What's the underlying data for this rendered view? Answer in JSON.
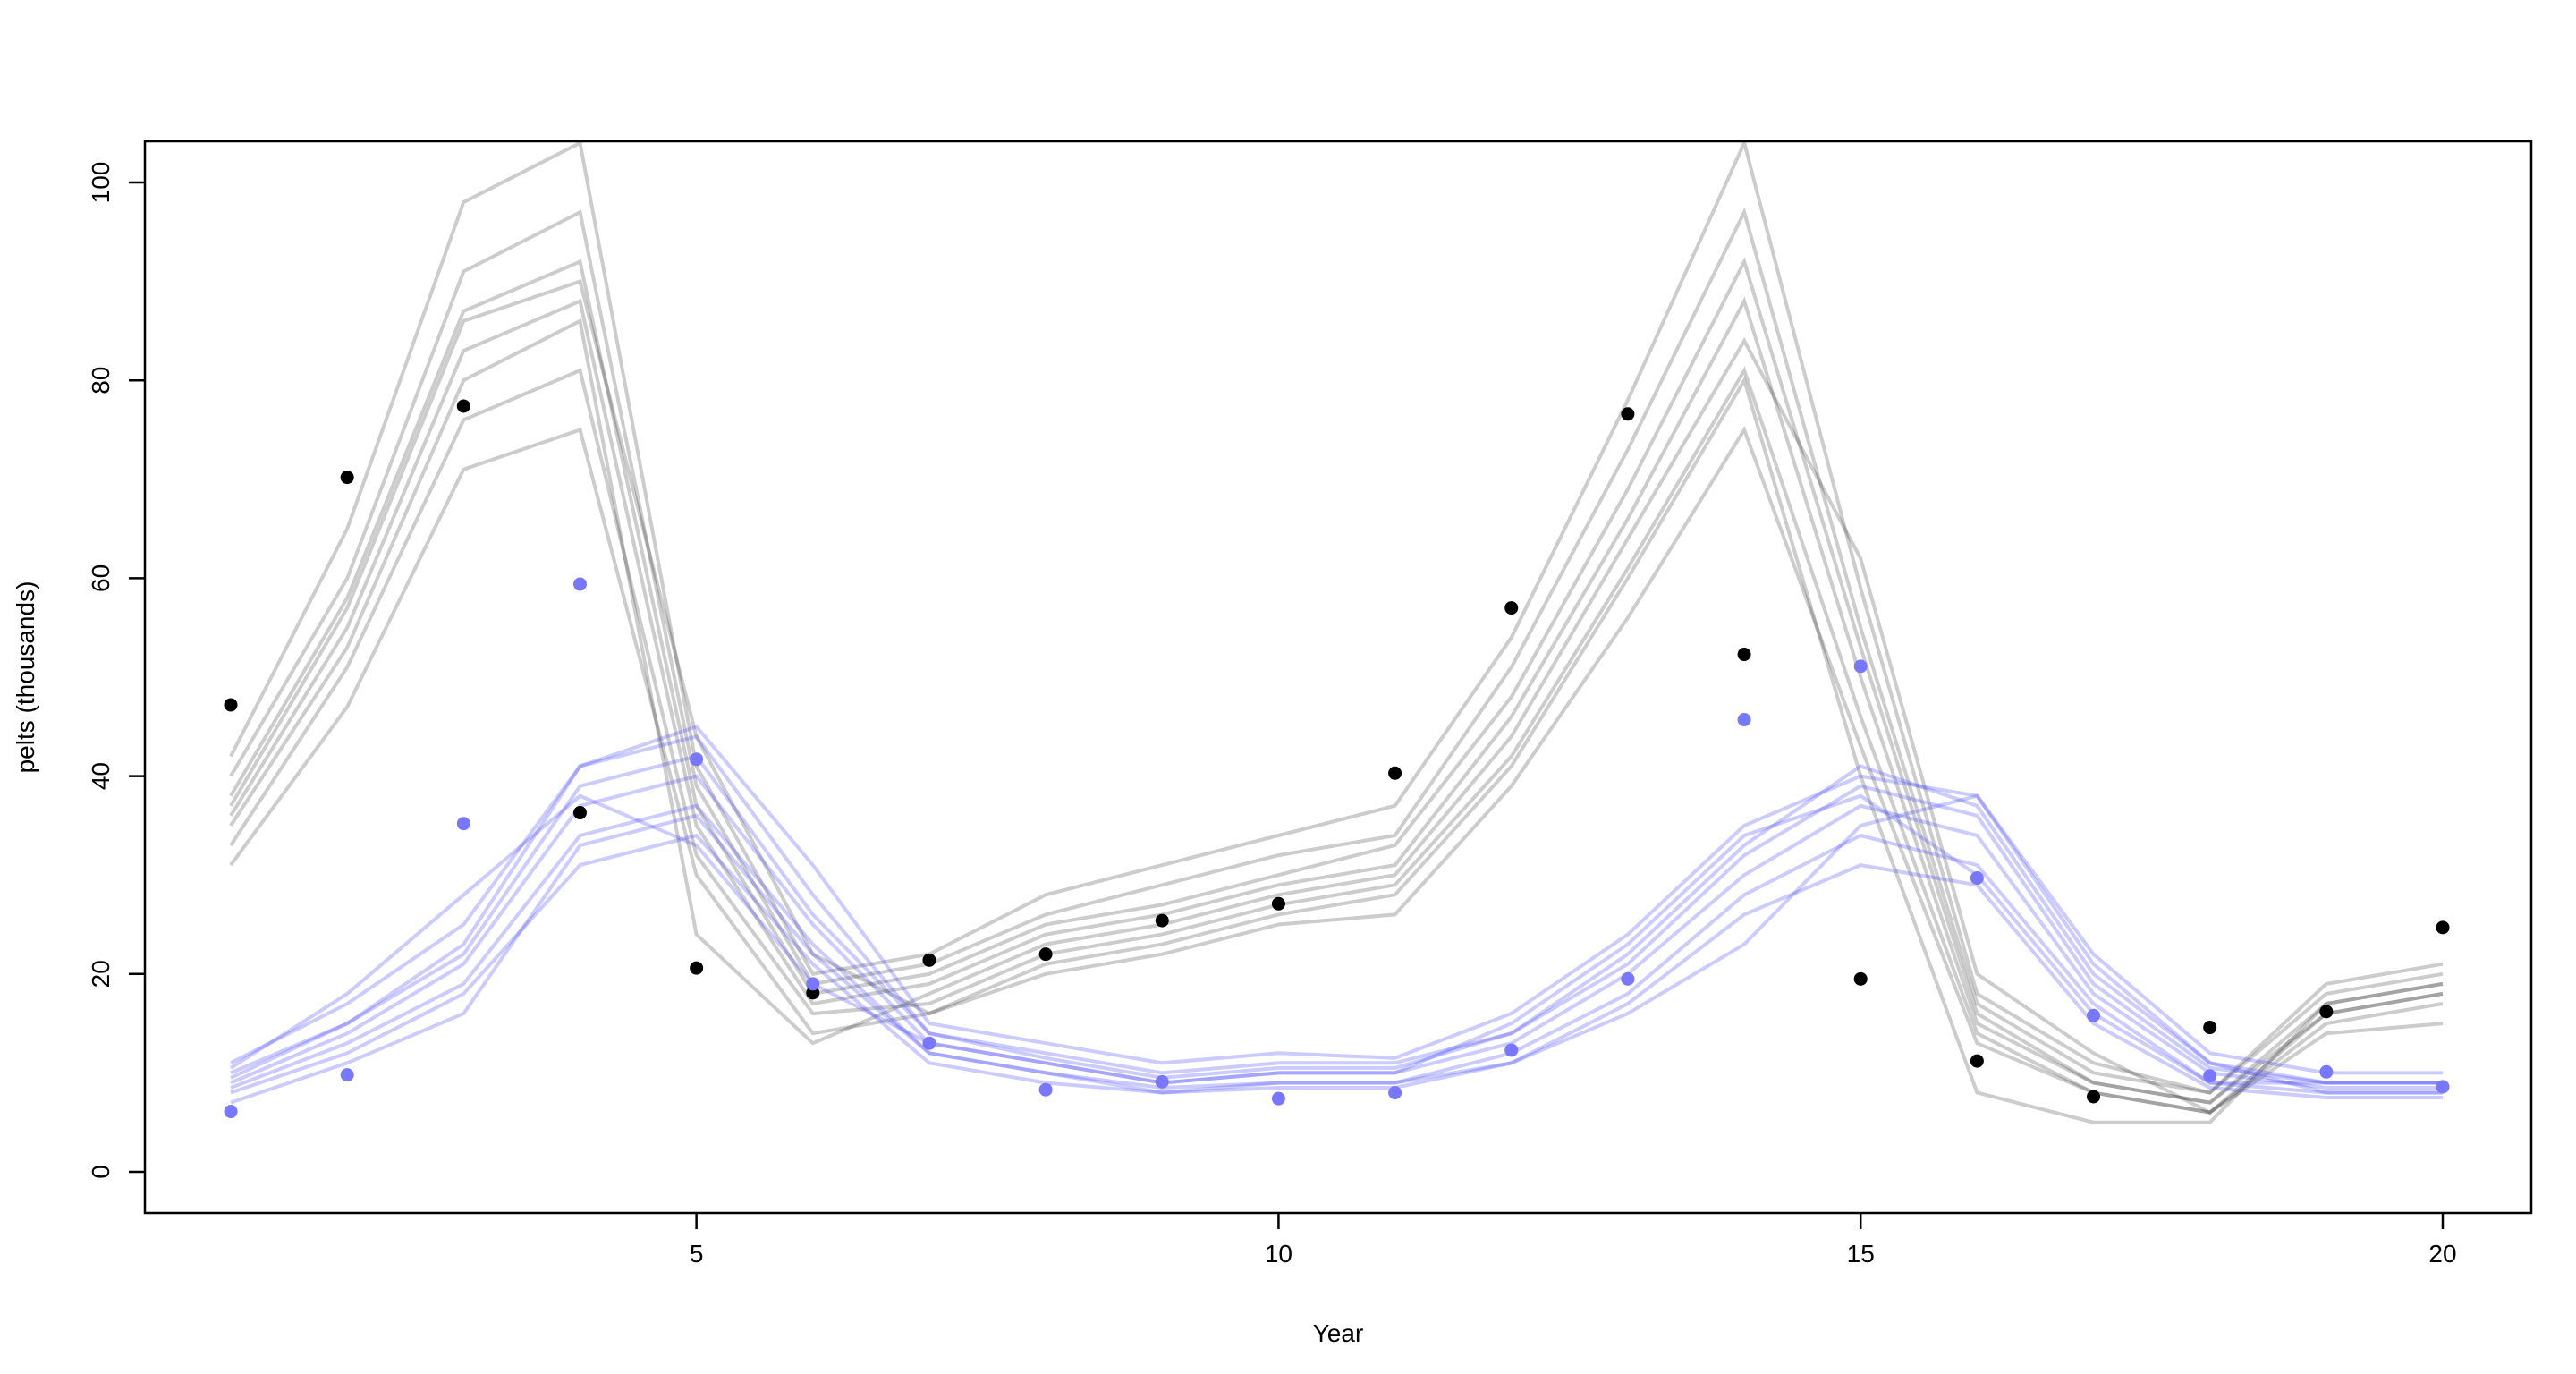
{
  "chart_data": {
    "type": "line",
    "title": "",
    "xlabel": "Year",
    "ylabel": "pelts (thousands)",
    "xlim": [
      0.3,
      20.8
    ],
    "ylim": [
      -4,
      104
    ],
    "x_ticks": [
      5,
      10,
      15,
      20
    ],
    "y_ticks": [
      0,
      20,
      40,
      60,
      80,
      100
    ],
    "grid": false,
    "colors": {
      "black_series": "#000000",
      "blue_series": "#7777ff",
      "black_lines": "rgba(0,0,0,0.2)",
      "blue_lines": "rgba(70,70,255,0.28)"
    },
    "x": [
      1,
      2,
      3,
      4,
      5,
      6,
      7,
      8,
      9,
      10,
      11,
      12,
      13,
      14,
      15,
      16,
      17,
      18,
      19,
      20
    ],
    "observed": [
      {
        "color": "black",
        "values": [
          47.2,
          70.2,
          77.4,
          36.3,
          20.6,
          18.1,
          21.4,
          22.0,
          25.4,
          27.1,
          40.3,
          57.0,
          76.6,
          52.3,
          19.5,
          11.2,
          7.6,
          14.6,
          16.2,
          24.7
        ]
      },
      {
        "color": "blue",
        "values": [
          6.1,
          9.8,
          35.2,
          59.4,
          41.7,
          19.0,
          13.0,
          8.3,
          9.1,
          7.4,
          8.0,
          12.3,
          19.5,
          45.7,
          51.1,
          29.7,
          15.8,
          9.7,
          10.1,
          8.6
        ]
      }
    ],
    "trajectories": [
      {
        "color": "black",
        "values": [
          31,
          47,
          71,
          75,
          30,
          14,
          16,
          20,
          22,
          25,
          26,
          39,
          56,
          75,
          43,
          13,
          8,
          6,
          14,
          15
        ]
      },
      {
        "color": "black",
        "values": [
          33,
          51,
          76,
          81,
          32,
          16,
          17,
          22,
          24,
          27,
          29,
          42,
          61,
          81,
          46,
          14,
          8,
          6,
          15,
          17
        ]
      },
      {
        "color": "black",
        "values": [
          36,
          55,
          83,
          88,
          35,
          17,
          19,
          24,
          26,
          29,
          31,
          46,
          66,
          88,
          50,
          15,
          9,
          7,
          16,
          18
        ]
      },
      {
        "color": "black",
        "values": [
          38,
          58,
          87,
          92,
          37,
          18,
          20,
          25,
          27,
          30,
          33,
          48,
          69,
          92,
          53,
          16,
          9,
          7,
          17,
          19
        ]
      },
      {
        "color": "black",
        "values": [
          40,
          60,
          91,
          97,
          39,
          19,
          21,
          26,
          29,
          32,
          34,
          51,
          73,
          97,
          55,
          17,
          10,
          8,
          18,
          20
        ]
      },
      {
        "color": "black",
        "values": [
          42,
          65,
          98,
          104,
          41,
          20,
          22,
          28,
          31,
          34,
          37,
          54,
          78,
          104,
          59,
          18,
          11,
          8,
          19,
          21
        ]
      },
      {
        "color": "black",
        "values": [
          35,
          53,
          80,
          86,
          24,
          13,
          18,
          23,
          25,
          28,
          30,
          44,
          64,
          84,
          62,
          20,
          12,
          6,
          16,
          18
        ]
      },
      {
        "color": "black",
        "values": [
          37,
          57,
          86,
          90,
          44,
          22,
          16,
          21,
          23,
          26,
          28,
          41,
          60,
          80,
          40,
          8,
          5,
          5,
          17,
          19
        ]
      },
      {
        "color": "blue",
        "values": [
          8,
          12,
          18,
          31,
          34,
          21,
          11,
          9,
          8,
          8.5,
          8.5,
          11,
          17,
          26,
          31,
          29,
          15,
          8.5,
          7.5,
          7.5
        ]
      },
      {
        "color": "blue",
        "values": [
          8.5,
          13,
          19,
          34,
          37,
          23,
          12,
          10,
          8.5,
          9,
          9,
          12,
          18,
          28,
          34,
          31,
          17,
          9,
          8,
          8
        ]
      },
      {
        "color": "blue",
        "values": [
          9,
          14,
          21,
          37,
          40,
          25,
          13,
          11,
          9,
          10,
          10,
          13,
          20,
          30,
          37,
          34,
          18,
          10,
          8.5,
          8.5
        ]
      },
      {
        "color": "blue",
        "values": [
          9.5,
          15,
          22,
          39,
          42,
          26,
          14,
          11.5,
          9.5,
          10.5,
          10.5,
          14,
          21,
          32,
          39,
          36,
          19,
          10.5,
          9,
          9
        ]
      },
      {
        "color": "blue",
        "values": [
          10,
          15,
          23,
          41,
          44,
          28,
          14,
          12,
          10,
          11,
          11,
          14,
          22,
          33,
          41,
          37,
          20,
          11,
          9,
          9
        ]
      },
      {
        "color": "blue",
        "values": [
          11,
          17,
          25,
          41,
          45,
          31,
          15,
          13,
          11,
          12,
          11.5,
          16,
          24,
          35,
          40,
          38,
          22,
          12,
          10,
          10
        ]
      },
      {
        "color": "blue",
        "values": [
          7,
          11,
          16,
          33,
          36,
          22,
          12,
          10,
          8,
          9,
          9,
          11,
          16,
          23,
          35,
          38,
          21,
          11,
          8,
          8
        ]
      },
      {
        "color": "blue",
        "values": [
          10.5,
          18,
          28,
          38,
          33,
          19,
          13,
          11,
          9,
          10,
          10,
          15,
          23,
          34,
          38,
          30,
          16,
          9,
          9,
          9
        ]
      }
    ]
  }
}
